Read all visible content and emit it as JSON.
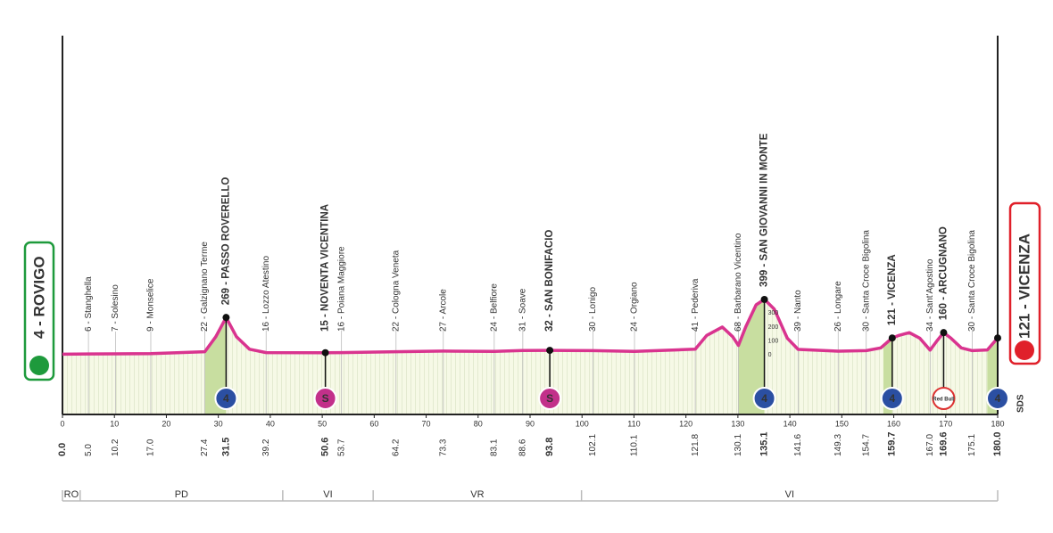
{
  "chart_data": {
    "type": "area",
    "color": "#d9348f",
    "fill": "#f6f9e6",
    "climb_color": "#c8dea0",
    "finish_note": "SDS",
    "xlim": [
      0,
      180
    ],
    "ylim": [
      -430,
      2300
    ],
    "xticks": [
      0,
      10,
      20,
      30,
      40,
      50,
      60,
      70,
      80,
      90,
      100,
      110,
      120,
      130,
      140,
      150,
      160,
      170,
      180
    ],
    "yticks": [
      0,
      100,
      200,
      300
    ],
    "x": [
      0,
      5,
      10.2,
      17,
      22,
      27.4,
      29.5,
      31.5,
      33.5,
      36,
      39.2,
      50.6,
      53.7,
      64.2,
      73.3,
      83.1,
      88.6,
      93.8,
      102.1,
      110.1,
      118,
      121.8,
      124,
      127,
      129,
      130.1,
      131.5,
      133.5,
      135.1,
      137,
      139.5,
      141.6,
      149.3,
      154.7,
      157.5,
      159.7,
      161,
      163,
      165,
      167,
      168.3,
      169.6,
      171,
      173,
      175.1,
      178,
      180
    ],
    "series": [
      {
        "values": [
          4,
          6,
          7,
          9,
          15,
          22,
          130,
          269,
          130,
          40,
          16,
          15,
          16,
          22,
          27,
          24,
          31,
          32,
          30,
          24,
          35,
          41,
          140,
          200,
          130,
          68,
          200,
          360,
          399,
          330,
          120,
          39,
          26,
          30,
          50,
          121,
          140,
          160,
          120,
          34,
          100,
          160,
          120,
          50,
          30,
          35,
          121
        ]
      }
    ],
    "climbs": [
      [
        27.4,
        31.5
      ],
      [
        130.1,
        135.1
      ],
      [
        158,
        159.7
      ],
      [
        178,
        180
      ]
    ],
    "places": [
      {
        "label": "4 - ROVIGO",
        "km": {
          "value": 0,
          "label": "0.0"
        },
        "role": "start"
      },
      {
        "label": "6 - Stanghella",
        "km": {
          "value": 5,
          "label": "5.0"
        }
      },
      {
        "label": "7 - Solesino",
        "km": 10.2
      },
      {
        "label": "9 - Monselice",
        "km": {
          "value": 17,
          "label": "17.0"
        }
      },
      {
        "label": "22 - Galzignano Terme",
        "km": 27.4
      },
      {
        "label": "269 - PASSO ROVERELLO",
        "km": 31.5,
        "icon": {
          "kind": "gpm",
          "text": "4"
        }
      },
      {
        "label": "16 - Lozzo Atestino",
        "km": 39.2
      },
      {
        "label": "15 - NOVENTA VICENTINA",
        "km": 50.6,
        "icon": {
          "kind": "sprint",
          "text": "S"
        }
      },
      {
        "label": "16 - Poiana Maggiore",
        "km": 53.7
      },
      {
        "label": "22 - Cologna Veneta",
        "km": 64.2
      },
      {
        "label": "27 - Arcole",
        "km": 73.3
      },
      {
        "label": "24 - Belfiore",
        "km": 83.1
      },
      {
        "label": "31 - Soave",
        "km": 88.6
      },
      {
        "label": "32 - SAN BONIFACIO",
        "km": 93.8,
        "icon": {
          "kind": "sprint",
          "text": "S"
        }
      },
      {
        "label": "30 - Lonigo",
        "km": 102.1
      },
      {
        "label": "24 - Orgiano",
        "km": 110.1
      },
      {
        "label": "41 - Pederiva",
        "km": 121.8
      },
      {
        "label": "68 - Barbarano Vicentino",
        "km": 130.1
      },
      {
        "label": "399 - SAN GIOVANNI IN MONTE",
        "km": 135.1,
        "icon": {
          "kind": "gpm",
          "text": "4"
        }
      },
      {
        "label": "39 - Nanto",
        "km": 141.6
      },
      {
        "label": "26 - Longare",
        "km": 149.3
      },
      {
        "label": "30 - Santa Croce Bigolina",
        "km": 154.7
      },
      {
        "label": "121 - VICENZA",
        "km": 159.7,
        "icon": {
          "kind": "gpm",
          "text": "4"
        }
      },
      {
        "label": "34 - Sant'Agostino",
        "km": {
          "value": 167,
          "label": "167.0"
        }
      },
      {
        "label": "160 - ARCUGNANO",
        "km": 169.6,
        "icon": {
          "kind": "bonus",
          "text": "Red Bull"
        }
      },
      {
        "label": "30 - Santa Croce Bigolina",
        "km": 175.1
      },
      {
        "label": "121 - VICENZA",
        "km": {
          "value": 180,
          "label": "180.0"
        },
        "role": "finish",
        "icon": {
          "kind": "gpm",
          "text": "4"
        }
      }
    ],
    "regions": [
      {
        "label": "RO",
        "from": 0,
        "to": 3.4
      },
      {
        "label": "PD",
        "from": 3.4,
        "to": 42.4
      },
      {
        "label": "VI",
        "from": 42.4,
        "to": 59.8
      },
      {
        "label": "VR",
        "from": 59.8,
        "to": 99.9
      },
      {
        "label": "VI",
        "from": 99.9,
        "to": 180
      }
    ]
  }
}
